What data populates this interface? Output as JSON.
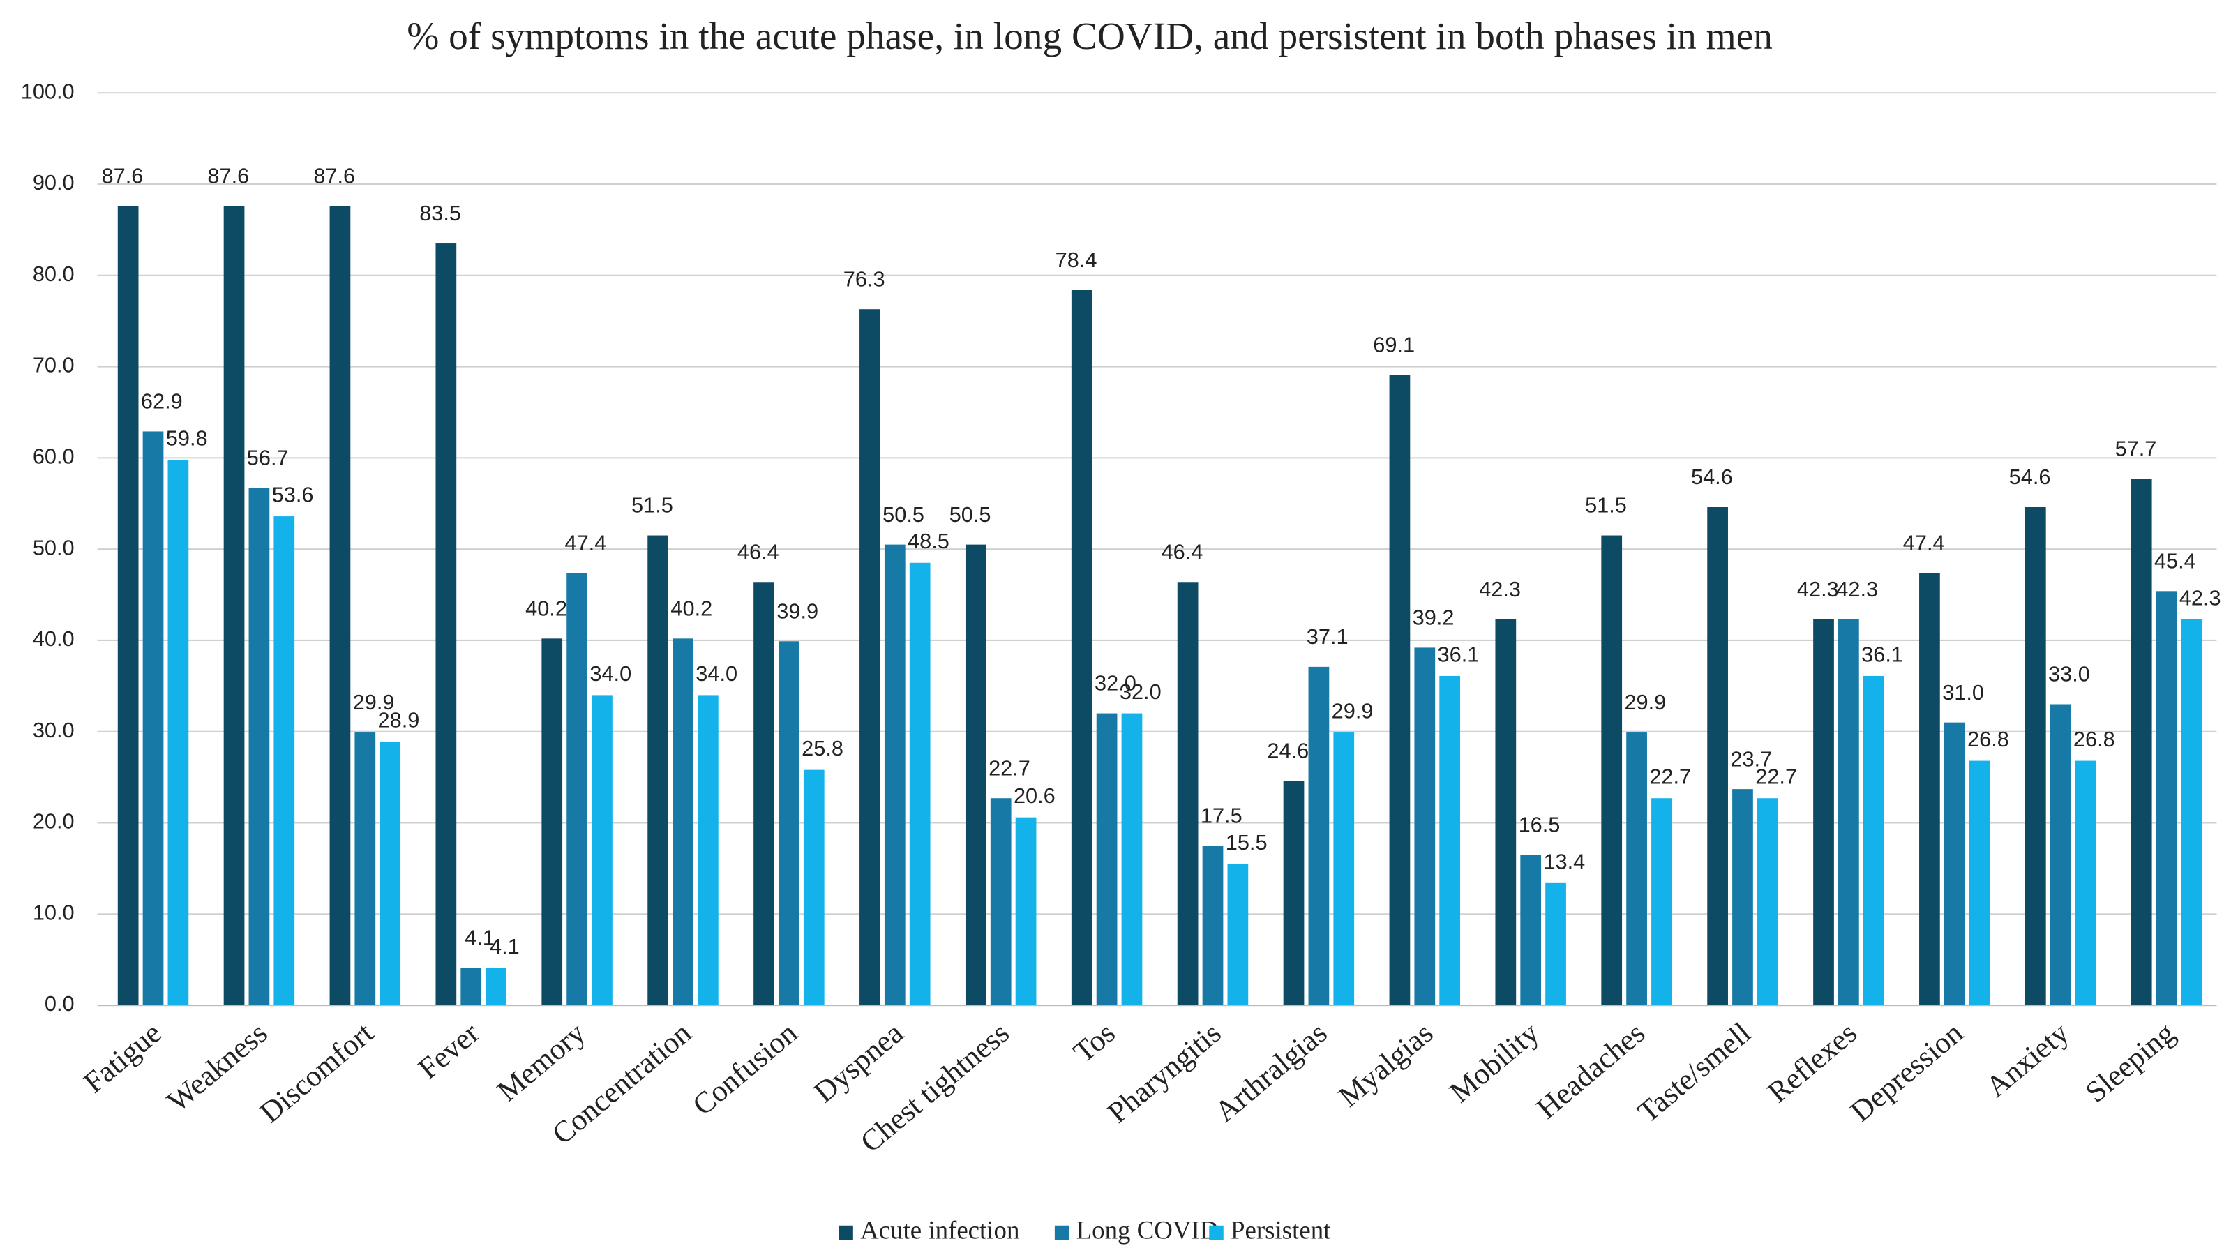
{
  "chart_data": {
    "type": "bar",
    "title": "% of symptoms  in the acute phase, in long  COVID, and persistent in both phases in men",
    "categories": [
      "Fatigue",
      "Weakness",
      "Discomfort",
      "Fever",
      "Memory",
      "Concentration",
      "Confusion",
      "Dyspnea",
      "Chest tightness",
      "Tos",
      "Pharyngitis",
      "Arthralgias",
      "Myalgias",
      "Mobility",
      "Headaches",
      "Taste/smell",
      "Reflexes",
      "Depression",
      "Anxiety",
      "Sleeping"
    ],
    "series": [
      {
        "name": "Acute infection",
        "color": "#0d4a63",
        "values": [
          87.6,
          87.6,
          87.6,
          83.5,
          40.2,
          51.5,
          46.4,
          76.3,
          50.5,
          78.4,
          46.4,
          24.6,
          69.1,
          42.3,
          51.5,
          54.6,
          42.3,
          47.4,
          54.6,
          57.7
        ],
        "value_labels": [
          "87.6",
          "87.6",
          "87.6",
          "83.5",
          "40.2",
          "51.5",
          "46.4",
          "76.3",
          "50.5",
          "78.4",
          "46.4",
          "24.6",
          "69.1",
          "42.3",
          "51.5",
          "54.6",
          "42.3",
          "47.4",
          "54.6",
          "57.7"
        ]
      },
      {
        "name": "Long COVID",
        "color": "#1679a6",
        "values": [
          62.9,
          56.7,
          29.9,
          4.1,
          47.4,
          40.2,
          39.9,
          50.5,
          22.7,
          32.0,
          17.5,
          37.1,
          39.2,
          16.5,
          29.9,
          23.7,
          42.3,
          31.0,
          33.0,
          45.4
        ],
        "value_labels": [
          "62.9",
          "56.7",
          "29.9",
          "4.1",
          "47.4",
          "40.2",
          "39.9",
          "50.5",
          "22.7",
          "32.0",
          "17.5",
          "37.1",
          "39.2",
          "16.5",
          "29.9",
          "23.7",
          "42.3",
          "31.0",
          "33.0",
          "45.4"
        ]
      },
      {
        "name": "Persistent",
        "color": "#13b2ea",
        "values": [
          59.8,
          53.6,
          28.9,
          4.1,
          34.0,
          34.0,
          25.8,
          48.5,
          20.6,
          32.0,
          15.5,
          29.9,
          36.1,
          13.4,
          22.7,
          22.7,
          36.1,
          26.8,
          26.8,
          42.3
        ],
        "value_labels": [
          "59.8",
          "53.6",
          "28.9",
          "4.1",
          "34.0",
          "34.0",
          "25.8",
          "48.5",
          "20.6",
          "32.0",
          "15.5",
          "29.9",
          "36.1",
          "13.4",
          "22.7",
          "22.7",
          "36.1",
          "26.8",
          "26.8",
          "42.3"
        ]
      }
    ],
    "ylim": [
      0,
      100
    ],
    "yticks": [
      {
        "value": 0,
        "label": "0.0"
      },
      {
        "value": 10,
        "label": "10.0"
      },
      {
        "value": 20,
        "label": "20.0"
      },
      {
        "value": 30,
        "label": "30.0"
      },
      {
        "value": 40,
        "label": "40.0"
      },
      {
        "value": 50,
        "label": "50.0"
      },
      {
        "value": 60,
        "label": "60.0"
      },
      {
        "value": 70,
        "label": "70.0"
      },
      {
        "value": 80,
        "label": "80.0"
      },
      {
        "value": 90,
        "label": "90.0"
      },
      {
        "value": 100,
        "label": "100.0"
      }
    ],
    "grid": true,
    "legend": "bottom"
  }
}
